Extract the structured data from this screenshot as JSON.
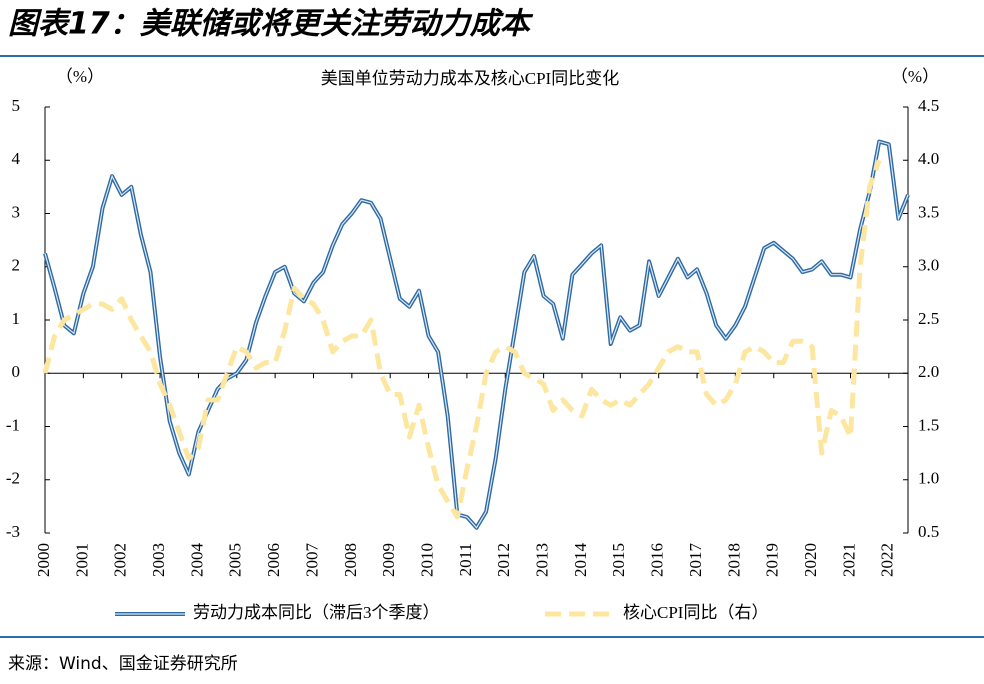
{
  "header": {
    "title": "图表17：美联储或将更关注劳动力成本"
  },
  "chart_data": {
    "type": "line",
    "title": "美国单位劳动力成本及核心CPI同比变化",
    "ylabel": "（%）",
    "y2label": "（%）",
    "x": [
      2000,
      2000.25,
      2000.5,
      2000.75,
      2001,
      2001.25,
      2001.5,
      2001.75,
      2002,
      2002.25,
      2002.5,
      2002.75,
      2003,
      2003.25,
      2003.5,
      2003.75,
      2004,
      2004.25,
      2004.5,
      2004.75,
      2005,
      2005.25,
      2005.5,
      2005.75,
      2006,
      2006.25,
      2006.5,
      2006.75,
      2007,
      2007.25,
      2007.5,
      2007.75,
      2008,
      2008.25,
      2008.5,
      2008.75,
      2009,
      2009.25,
      2009.5,
      2009.75,
      2010,
      2010.25,
      2010.5,
      2010.75,
      2011,
      2011.25,
      2011.5,
      2011.75,
      2012,
      2012.25,
      2012.5,
      2012.75,
      2013,
      2013.25,
      2013.5,
      2013.75,
      2014,
      2014.25,
      2014.5,
      2014.75,
      2015,
      2015.25,
      2015.5,
      2015.75,
      2016,
      2016.25,
      2016.5,
      2016.75,
      2017,
      2017.25,
      2017.5,
      2017.75,
      2018,
      2018.25,
      2018.5,
      2018.75,
      2019,
      2019.25,
      2019.5,
      2019.75,
      2020,
      2020.25,
      2020.5,
      2020.75,
      2021,
      2021.25,
      2021.5,
      2021.75,
      2022,
      2022.25,
      2022.5
    ],
    "series": [
      {
        "name": "劳动力成本同比（滞后3个季度）",
        "color": "#2e6aa3",
        "values": [
          2.25,
          1.6,
          0.9,
          0.75,
          1.5,
          2.0,
          3.1,
          3.7,
          3.35,
          3.5,
          2.6,
          1.9,
          0.3,
          -0.9,
          -1.5,
          -1.9,
          -1.1,
          -0.7,
          -0.3,
          -0.1,
          0.0,
          0.25,
          0.95,
          1.45,
          1.9,
          2.0,
          1.5,
          1.35,
          1.7,
          1.9,
          2.4,
          2.8,
          3.0,
          3.25,
          3.2,
          2.9,
          2.15,
          1.4,
          1.25,
          1.55,
          0.7,
          0.4,
          -0.8,
          -2.65,
          -2.7,
          -2.9,
          -2.6,
          -1.6,
          -0.3,
          0.8,
          1.9,
          2.2,
          1.45,
          1.3,
          0.65,
          1.85,
          2.05,
          2.25,
          2.4,
          0.55,
          1.05,
          0.8,
          0.9,
          2.1,
          1.45,
          1.8,
          2.15,
          1.8,
          1.95,
          1.5,
          0.9,
          0.65,
          0.9,
          1.25,
          1.8,
          2.35,
          2.45,
          2.3,
          2.15,
          1.9,
          1.95,
          2.1,
          1.85,
          1.85,
          1.8,
          2.7,
          3.4,
          4.35,
          4.3,
          2.9,
          3.35
        ]
      },
      {
        "name": "核心CPI同比（右）",
        "color": "#fce6a0",
        "axis": "y2",
        "values": [
          2.0,
          2.35,
          2.5,
          2.55,
          2.6,
          2.65,
          2.65,
          2.6,
          2.7,
          2.5,
          2.35,
          2.2,
          1.9,
          1.7,
          1.45,
          1.2,
          1.3,
          1.75,
          1.75,
          2.0,
          2.25,
          2.2,
          2.05,
          2.1,
          2.1,
          2.4,
          2.8,
          2.7,
          2.65,
          2.5,
          2.2,
          2.3,
          2.35,
          2.35,
          2.5,
          2.0,
          1.8,
          1.8,
          1.4,
          1.7,
          1.3,
          0.95,
          0.8,
          0.65,
          1.1,
          1.5,
          2.0,
          2.2,
          2.25,
          2.2,
          2.0,
          1.95,
          1.9,
          1.65,
          1.75,
          1.65,
          1.6,
          1.85,
          1.75,
          1.7,
          1.75,
          1.7,
          1.8,
          1.9,
          2.05,
          2.2,
          2.25,
          2.2,
          2.2,
          1.8,
          1.7,
          1.75,
          1.9,
          2.2,
          2.25,
          2.2,
          2.1,
          2.1,
          2.3,
          2.3,
          2.25,
          1.25,
          1.65,
          1.6,
          1.4,
          3.0,
          3.75,
          4.0,
          null,
          null,
          null
        ]
      }
    ],
    "xlim": [
      2000,
      2022.5
    ],
    "xticks": [
      2000,
      2001,
      2002,
      2003,
      2004,
      2005,
      2006,
      2007,
      2008,
      2009,
      2010,
      2011,
      2012,
      2013,
      2014,
      2015,
      2016,
      2017,
      2018,
      2019,
      2020,
      2021,
      2022
    ],
    "ylim": [
      -3,
      5
    ],
    "yticks": [
      -3,
      -2,
      -1,
      0,
      1,
      2,
      3,
      4,
      5
    ],
    "y2lim": [
      0.5,
      4.5
    ],
    "y2ticks": [
      0.5,
      {
        "value": 1,
        "label": "1.0"
      },
      1.5,
      {
        "value": 2,
        "label": "2.0"
      },
      2.5,
      {
        "value": 3,
        "label": "3.0"
      },
      3.5,
      {
        "value": 4,
        "label": "4.0"
      },
      4.5
    ]
  },
  "footer": {
    "source": "来源：Wind、国金证券研究所"
  }
}
